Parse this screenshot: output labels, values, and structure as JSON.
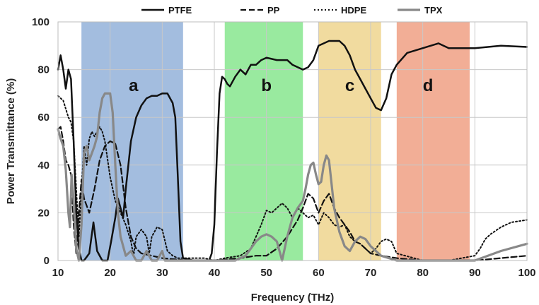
{
  "chart_data": {
    "type": "line",
    "title": "",
    "xlabel": "Frequency (THz)",
    "ylabel": "Power Transmittance  (%)",
    "xlim": [
      10,
      100
    ],
    "ylim": [
      0,
      100
    ],
    "xticks": [
      10,
      20,
      30,
      40,
      50,
      60,
      70,
      80,
      90,
      100
    ],
    "yticks": [
      0,
      20,
      40,
      60,
      80,
      100
    ],
    "grid": true,
    "legend_position": "top",
    "regions": [
      {
        "label": "a",
        "x0": 14.5,
        "x1": 34,
        "color": "#7fa3d3",
        "label_x": 24.5,
        "label_y": 71
      },
      {
        "label": "b",
        "x0": 42,
        "x1": 57,
        "color": "#72e27a",
        "label_x": 50,
        "label_y": 71
      },
      {
        "label": "c",
        "x0": 60,
        "x1": 72,
        "color": "#ebcd7a",
        "label_x": 66,
        "label_y": 71
      },
      {
        "label": "d",
        "x0": 75,
        "x1": 89,
        "color": "#ed8f6e",
        "label_x": 81,
        "label_y": 71
      }
    ],
    "series": [
      {
        "name": "PTFE",
        "style": "solid",
        "color": "#111111",
        "width": 2.5,
        "x": [
          10,
          10.5,
          11,
          11.5,
          12,
          12.5,
          13,
          13.5,
          14,
          14.5,
          15,
          16,
          16.8,
          17.5,
          18.5,
          19.5,
          20.2,
          21,
          21.5,
          22,
          22.5,
          23,
          24,
          25,
          26,
          27,
          28,
          29,
          30,
          31,
          32,
          32.5,
          33,
          33.5,
          34,
          36,
          38,
          39,
          39.5,
          40,
          40.5,
          41,
          41.5,
          42,
          42.5,
          43,
          44,
          45,
          46,
          47,
          48,
          49,
          50,
          52,
          54,
          55,
          57,
          58,
          59,
          60,
          62,
          64,
          65,
          66,
          67,
          68,
          69,
          70,
          71,
          72,
          73,
          74,
          75,
          77,
          80,
          83,
          85,
          87,
          90,
          95,
          100
        ],
        "y": [
          80,
          86,
          80,
          72,
          80,
          76,
          50,
          20,
          5,
          0,
          0,
          3,
          16,
          4,
          0,
          0,
          8,
          18,
          26,
          22,
          18,
          30,
          50,
          60,
          65,
          68,
          69,
          69,
          70,
          70,
          66,
          60,
          35,
          8,
          1,
          0,
          0,
          0,
          3,
          15,
          45,
          70,
          77,
          76,
          74,
          73,
          77,
          80,
          78,
          82,
          82,
          84,
          85,
          84,
          84,
          82,
          80,
          81,
          84,
          90,
          92,
          92,
          90,
          86,
          80,
          76,
          72,
          68,
          64,
          63,
          68,
          78,
          82,
          87,
          89,
          91,
          89,
          89,
          89,
          90,
          89.5
        ]
      },
      {
        "name": "PP",
        "style": "dashed",
        "color": "#111111",
        "width": 2.2,
        "x": [
          10,
          10.5,
          11,
          11.5,
          12,
          12.5,
          13,
          13.5,
          14,
          14.5,
          15,
          16,
          17,
          18,
          19,
          20,
          21,
          22,
          23,
          24,
          25,
          26,
          28,
          30,
          35,
          40,
          45,
          48,
          50,
          52,
          54,
          56,
          57,
          58,
          59,
          60,
          61,
          62,
          63,
          64,
          65,
          66,
          67,
          68,
          69,
          70,
          72,
          75,
          80,
          90,
          95,
          100
        ],
        "y": [
          55,
          56,
          50,
          42,
          40,
          36,
          15,
          3,
          20,
          34,
          26,
          20,
          30,
          42,
          48,
          50,
          49,
          40,
          22,
          10,
          5,
          3,
          2,
          1,
          0,
          0,
          1,
          2,
          2,
          5,
          10,
          17,
          22,
          28,
          26,
          20,
          25,
          28,
          22,
          18,
          15,
          12,
          8,
          7,
          5,
          3,
          2,
          1,
          0,
          0,
          1,
          2
        ]
      },
      {
        "name": "HDPE",
        "style": "dotted",
        "color": "#111111",
        "width": 2.0,
        "x": [
          10,
          11,
          12,
          12.5,
          13,
          13.5,
          14,
          14.5,
          15,
          15.5,
          16,
          16.5,
          17,
          18,
          18.5,
          19,
          20,
          21,
          22,
          23,
          24,
          24.5,
          25,
          26,
          27,
          27.5,
          28,
          29,
          30,
          31,
          32,
          33,
          35,
          38,
          40,
          42,
          45,
          47,
          49,
          50,
          51,
          52,
          53,
          54,
          55,
          56,
          57,
          58,
          59,
          60,
          61,
          62,
          63,
          64,
          65,
          66,
          67,
          68,
          69,
          70,
          71,
          72,
          73,
          74,
          75,
          80,
          85,
          90,
          91,
          92,
          93,
          95,
          97,
          100
        ],
        "y": [
          69,
          67,
          60,
          58,
          50,
          30,
          10,
          30,
          48,
          40,
          51,
          54,
          52,
          56,
          54,
          50,
          35,
          25,
          20,
          15,
          8,
          2,
          10,
          13,
          10,
          3,
          10,
          14,
          13,
          4,
          2,
          1,
          1,
          1,
          0,
          1,
          2,
          5,
          15,
          21,
          20,
          22,
          24,
          22,
          18,
          22,
          20,
          18,
          19,
          15,
          20,
          18,
          15,
          14,
          15,
          10,
          8,
          7,
          5,
          3,
          5,
          8,
          9,
          8,
          3,
          0,
          0,
          2,
          5,
          9,
          11,
          14,
          16,
          17
        ]
      },
      {
        "name": "TPX",
        "style": "solid",
        "color": "#888888",
        "width": 3.2,
        "x": [
          10,
          10.5,
          11,
          11.5,
          12,
          12.3,
          12.6,
          13,
          13.5,
          14,
          14.5,
          15,
          15.5,
          16,
          16.5,
          17,
          17.5,
          18,
          18.5,
          19,
          19.5,
          20,
          20.5,
          21,
          21.5,
          22,
          23,
          24,
          25,
          26,
          27,
          28,
          29,
          30,
          30.5,
          31,
          32,
          33,
          34,
          36,
          40,
          44,
          46,
          47,
          48,
          49,
          50,
          51,
          52,
          53,
          54,
          55,
          56,
          57,
          57.5,
          58,
          58.5,
          59,
          59.5,
          60,
          60.5,
          61,
          61.5,
          62,
          62.5,
          63,
          64,
          65,
          66,
          67,
          68,
          69,
          70,
          72,
          75,
          80,
          90,
          95,
          100
        ],
        "y": [
          55,
          51,
          48,
          38,
          20,
          14,
          36,
          25,
          5,
          0,
          15,
          45,
          48,
          42,
          45,
          48,
          52,
          62,
          68,
          70,
          70,
          70,
          62,
          40,
          20,
          10,
          2,
          4,
          0,
          0,
          4,
          0,
          0,
          4,
          0,
          0,
          0,
          0,
          0,
          0,
          0,
          0,
          2,
          5,
          8,
          10,
          11,
          10,
          8,
          0,
          10,
          18,
          22,
          25,
          30,
          36,
          40,
          41,
          36,
          32,
          33,
          40,
          44,
          42,
          32,
          22,
          12,
          6,
          4,
          8,
          10,
          9,
          6,
          2,
          0,
          0,
          0,
          4,
          7
        ]
      }
    ]
  }
}
